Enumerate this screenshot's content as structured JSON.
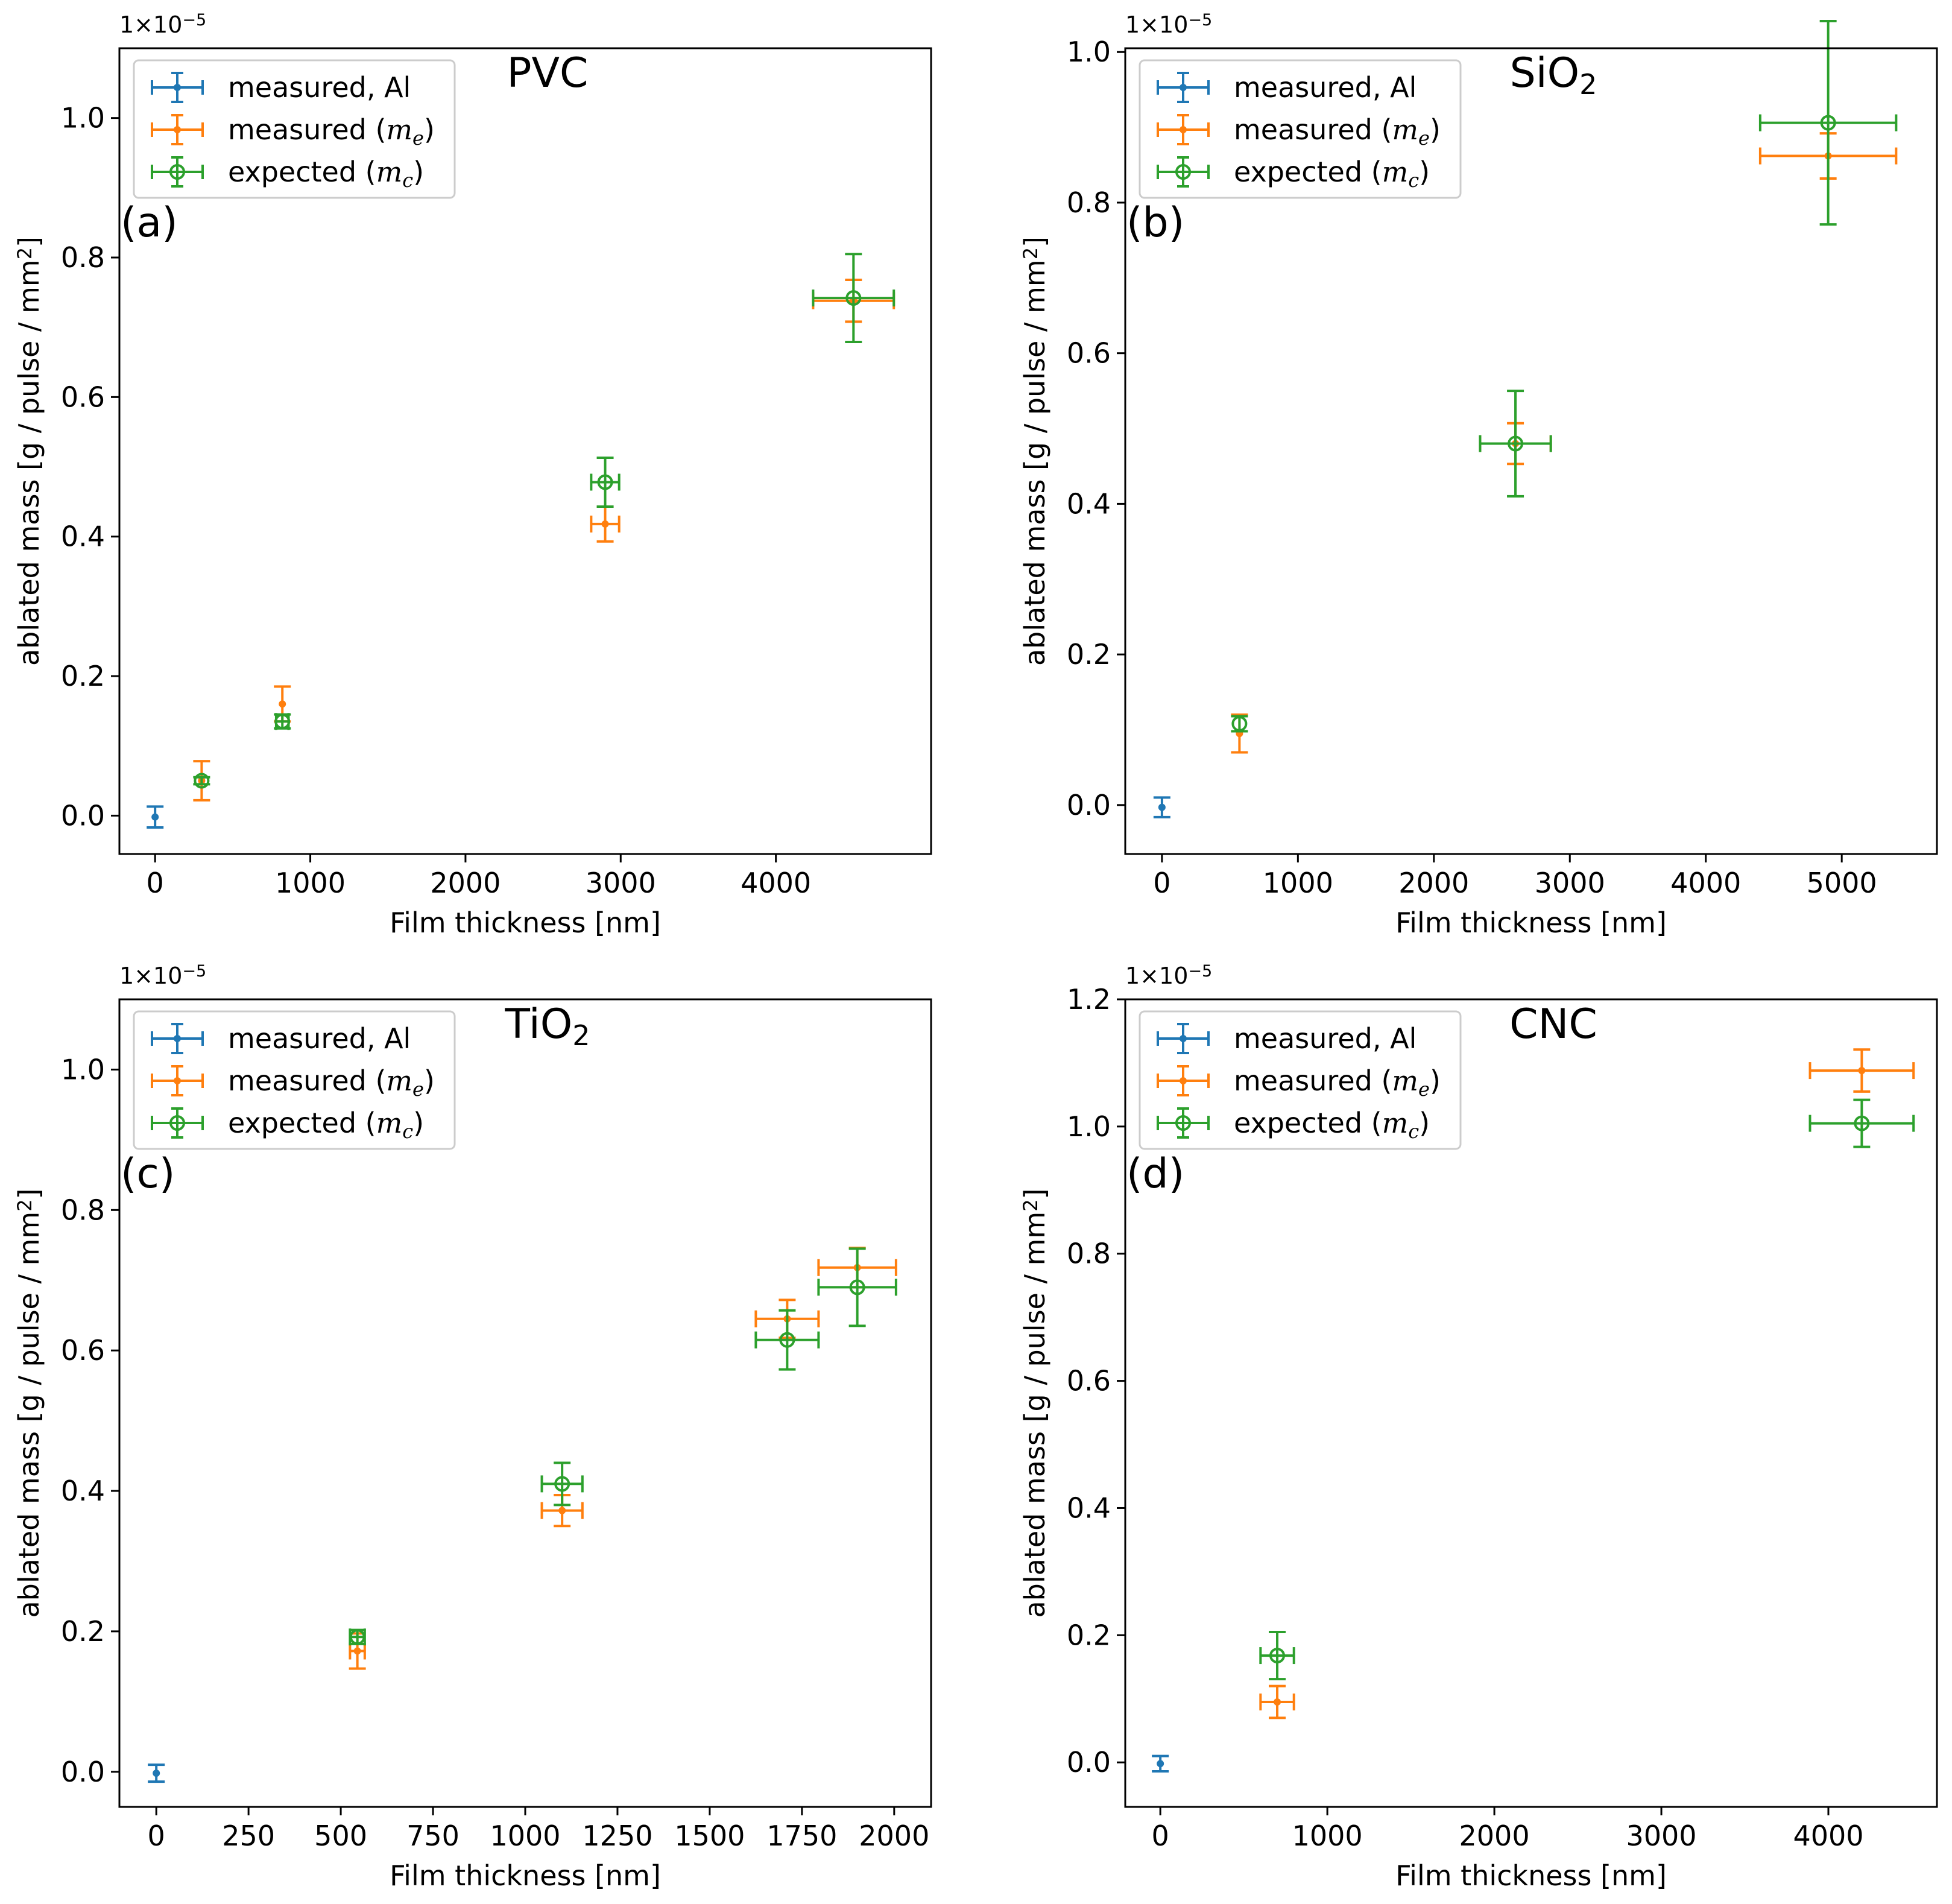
{
  "colors": {
    "al": "#1f77b4",
    "me": "#ff7f0e",
    "mc": "#2ca02c"
  },
  "chart_data": [
    {
      "type": "scatter",
      "title": "PVC",
      "panel_label": "(a)",
      "xlabel": "Film thickness [nm]",
      "ylabel": "ablated mass [g / pulse / mm",
      "ylabel_sup": "2",
      "ylabel_end": "]",
      "offset_label": "1×10",
      "offset_exp": "−5",
      "xlim": [
        -230,
        5000
      ],
      "ylim": [
        -0.055,
        1.1
      ],
      "xticks": [
        0,
        1000,
        2000,
        3000,
        4000
      ],
      "xtick_labels": [
        "0",
        "1000",
        "2000",
        "3000",
        "4000"
      ],
      "yticks": [
        0.0,
        0.2,
        0.4,
        0.6,
        0.8,
        1.0
      ],
      "ytick_labels": [
        "0.0",
        "0.2",
        "0.4",
        "0.6",
        "0.8",
        "1.0"
      ],
      "legend": [
        {
          "pre": "measured, Al",
          "var": "",
          "sub": "",
          "post": ""
        },
        {
          "pre": "measured (",
          "var": "m",
          "sub": "e",
          "post": ")"
        },
        {
          "pre": "expected (",
          "var": "m",
          "sub": "c",
          "post": ")"
        }
      ],
      "series": [
        {
          "name": "measured, Al",
          "points": [
            {
              "x": 0,
              "y": -0.002,
              "xerr": 0,
              "yerr": 0.015
            }
          ]
        },
        {
          "name": "measured (m_e)",
          "points": [
            {
              "x": 300,
              "y": 0.05,
              "xerr": 0,
              "yerr": 0.028
            },
            {
              "x": 820,
              "y": 0.16,
              "xerr": 0,
              "yerr": 0.025
            },
            {
              "x": 2900,
              "y": 0.418,
              "xerr": 90,
              "yerr": 0.025
            },
            {
              "x": 4500,
              "y": 0.738,
              "xerr": 260,
              "yerr": 0.03
            }
          ]
        },
        {
          "name": "expected (m_c)",
          "points": [
            {
              "x": 300,
              "y": 0.05,
              "xerr": 0,
              "yerr": 0.005
            },
            {
              "x": 820,
              "y": 0.135,
              "xerr": 40,
              "yerr": 0.01
            },
            {
              "x": 2900,
              "y": 0.478,
              "xerr": 90,
              "yerr": 0.035
            },
            {
              "x": 4500,
              "y": 0.742,
              "xerr": 260,
              "yerr": 0.063
            }
          ]
        }
      ]
    },
    {
      "type": "scatter",
      "title": "SiO",
      "title_sub": "2",
      "panel_label": "(b)",
      "xlabel": "Film thickness [nm]",
      "ylabel": "ablated mass [g / pulse / mm",
      "ylabel_sup": "2",
      "ylabel_end": "]",
      "offset_label": "1×10",
      "offset_exp": "−5",
      "xlim": [
        -270,
        5700
      ],
      "ylim": [
        -0.065,
        1.005
      ],
      "xticks": [
        0,
        1000,
        2000,
        3000,
        4000,
        5000
      ],
      "xtick_labels": [
        "0",
        "1000",
        "2000",
        "3000",
        "4000",
        "5000"
      ],
      "yticks": [
        0.0,
        0.2,
        0.4,
        0.6,
        0.8,
        1.0
      ],
      "ytick_labels": [
        "0.0",
        "0.2",
        "0.4",
        "0.6",
        "0.8",
        "1.0"
      ],
      "legend": [
        {
          "pre": "measured, Al",
          "var": "",
          "sub": "",
          "post": ""
        },
        {
          "pre": "measured (",
          "var": "m",
          "sub": "e",
          "post": ")"
        },
        {
          "pre": "expected (",
          "var": "m",
          "sub": "c",
          "post": ")"
        }
      ],
      "series": [
        {
          "name": "measured, Al",
          "points": [
            {
              "x": 0,
              "y": -0.003,
              "xerr": 0,
              "yerr": 0.013
            }
          ]
        },
        {
          "name": "measured (m_e)",
          "points": [
            {
              "x": 570,
              "y": 0.095,
              "xerr": 0,
              "yerr": 0.025
            },
            {
              "x": 2600,
              "y": 0.48,
              "xerr": 260,
              "yerr": 0.027
            },
            {
              "x": 4900,
              "y": 0.862,
              "xerr": 500,
              "yerr": 0.03
            }
          ]
        },
        {
          "name": "expected (m_c)",
          "points": [
            {
              "x": 570,
              "y": 0.108,
              "xerr": 0,
              "yerr": 0.01
            },
            {
              "x": 2600,
              "y": 0.48,
              "xerr": 260,
              "yerr": 0.07
            },
            {
              "x": 4900,
              "y": 0.906,
              "xerr": 500,
              "yerr": 0.135
            }
          ]
        }
      ]
    },
    {
      "type": "scatter",
      "title": "TiO",
      "title_sub": "2",
      "panel_label": "(c)",
      "xlabel": "Film thickness [nm]",
      "ylabel": "ablated mass [g / pulse / mm",
      "ylabel_sup": "2",
      "ylabel_end": "]",
      "offset_label": "1×10",
      "offset_exp": "−5",
      "xlim": [
        -100,
        2100
      ],
      "ylim": [
        -0.05,
        1.1
      ],
      "xticks": [
        0,
        250,
        500,
        750,
        1000,
        1250,
        1500,
        1750,
        2000
      ],
      "xtick_labels": [
        "0",
        "250",
        "500",
        "750",
        "1000",
        "1250",
        "1500",
        "1750",
        "2000"
      ],
      "yticks": [
        0.0,
        0.2,
        0.4,
        0.6,
        0.8,
        1.0
      ],
      "ytick_labels": [
        "0.0",
        "0.2",
        "0.4",
        "0.6",
        "0.8",
        "1.0"
      ],
      "legend": [
        {
          "pre": "measured, Al",
          "var": "",
          "sub": "",
          "post": ""
        },
        {
          "pre": "measured (",
          "var": "m",
          "sub": "e",
          "post": ")"
        },
        {
          "pre": "expected (",
          "var": "m",
          "sub": "c",
          "post": ")"
        }
      ],
      "series": [
        {
          "name": "measured, Al",
          "points": [
            {
              "x": 0,
              "y": -0.002,
              "xerr": 0,
              "yerr": 0.012
            }
          ]
        },
        {
          "name": "measured (m_e)",
          "points": [
            {
              "x": 545,
              "y": 0.172,
              "xerr": 20,
              "yerr": 0.025
            },
            {
              "x": 1100,
              "y": 0.372,
              "xerr": 55,
              "yerr": 0.022
            },
            {
              "x": 1710,
              "y": 0.645,
              "xerr": 85,
              "yerr": 0.027
            },
            {
              "x": 1900,
              "y": 0.718,
              "xerr": 105,
              "yerr": 0.028
            }
          ]
        },
        {
          "name": "expected (m_c)",
          "points": [
            {
              "x": 545,
              "y": 0.192,
              "xerr": 20,
              "yerr": 0.01
            },
            {
              "x": 1100,
              "y": 0.41,
              "xerr": 55,
              "yerr": 0.03
            },
            {
              "x": 1710,
              "y": 0.615,
              "xerr": 85,
              "yerr": 0.042
            },
            {
              "x": 1900,
              "y": 0.69,
              "xerr": 105,
              "yerr": 0.055
            }
          ]
        }
      ]
    },
    {
      "type": "scatter",
      "title": "CNC",
      "panel_label": "(d)",
      "xlabel": "Film thickness [nm]",
      "ylabel": "ablated mass [g / pulse / mm",
      "ylabel_sup": "2",
      "ylabel_end": "]",
      "offset_label": "1×10",
      "offset_exp": "−5",
      "xlim": [
        -210,
        4650
      ],
      "ylim": [
        -0.07,
        1.2
      ],
      "xticks": [
        0,
        1000,
        2000,
        3000,
        4000
      ],
      "xtick_labels": [
        "0",
        "1000",
        "2000",
        "3000",
        "4000"
      ],
      "yticks": [
        0.0,
        0.2,
        0.4,
        0.6,
        0.8,
        1.0,
        1.2
      ],
      "ytick_labels": [
        "0.0",
        "0.2",
        "0.4",
        "0.6",
        "0.8",
        "1.0",
        "1.2"
      ],
      "legend": [
        {
          "pre": "measured, Al",
          "var": "",
          "sub": "",
          "post": ""
        },
        {
          "pre": "measured (",
          "var": "m",
          "sub": "e",
          "post": ")"
        },
        {
          "pre": "expected (",
          "var": "m",
          "sub": "c",
          "post": ")"
        }
      ],
      "series": [
        {
          "name": "measured, Al",
          "points": [
            {
              "x": 0,
              "y": -0.002,
              "xerr": 0,
              "yerr": 0.012
            }
          ]
        },
        {
          "name": "measured (m_e)",
          "points": [
            {
              "x": 700,
              "y": 0.095,
              "xerr": 100,
              "yerr": 0.025
            },
            {
              "x": 4200,
              "y": 1.088,
              "xerr": 310,
              "yerr": 0.033
            }
          ]
        },
        {
          "name": "expected (m_c)",
          "points": [
            {
              "x": 700,
              "y": 0.168,
              "xerr": 100,
              "yerr": 0.037
            },
            {
              "x": 4200,
              "y": 1.005,
              "xerr": 310,
              "yerr": 0.037
            }
          ]
        }
      ]
    }
  ]
}
